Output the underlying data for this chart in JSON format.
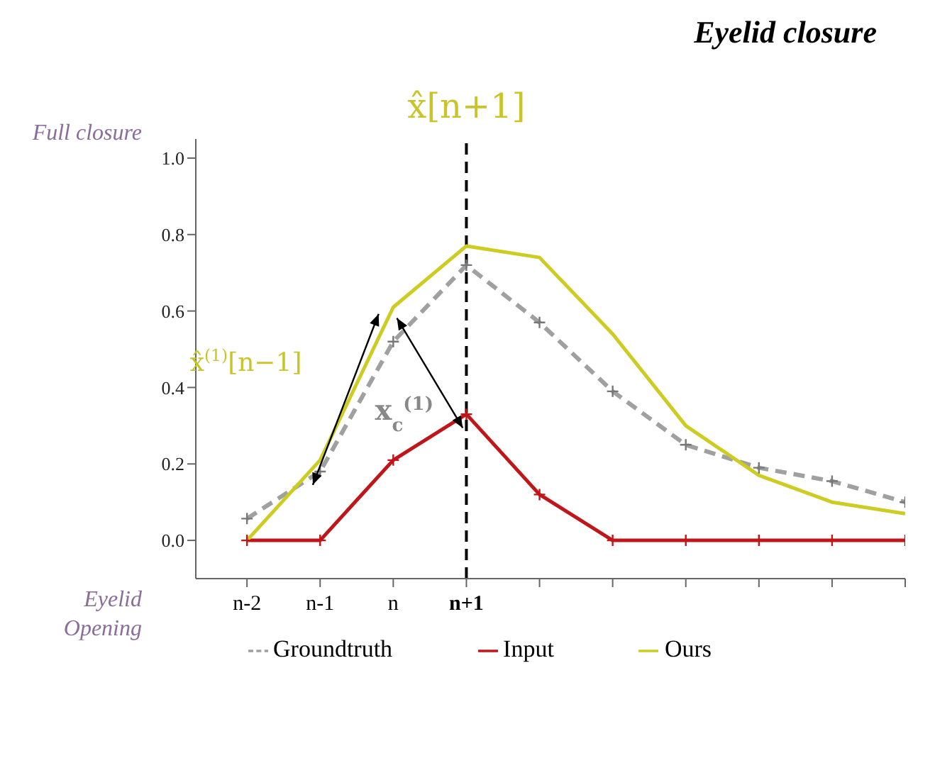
{
  "chart_data": {
    "type": "line",
    "title": "Eyelid closure",
    "categories": [
      "n-2",
      "n-1",
      "n",
      "n+1",
      null,
      null,
      null,
      null,
      null,
      null
    ],
    "series": [
      {
        "name": "Groundtruth",
        "color": "#a0a0a0",
        "line_style": "dashed",
        "marker": "cross",
        "values": [
          0.057,
          0.18,
          0.52,
          0.72,
          0.57,
          0.39,
          0.25,
          0.19,
          0.155,
          0.1
        ]
      },
      {
        "name": "Input",
        "color": "#c0161a",
        "line_style": "solid",
        "marker": "cross",
        "values": [
          0,
          0,
          0.21,
          0.33,
          0.12,
          0,
          0,
          0,
          0,
          0
        ]
      },
      {
        "name": "Ours",
        "color": "#cccc22",
        "line_style": "solid",
        "marker": "none",
        "values": [
          0,
          0.21,
          0.61,
          0.77,
          0.74,
          0.54,
          0.3,
          0.17,
          0.1,
          0.07
        ]
      }
    ],
    "ylim": [
      -0.1,
      1.05
    ],
    "yticks": [
      {
        "value": 0,
        "label": "0.0"
      },
      {
        "value": 0.2,
        "label": "0.2"
      },
      {
        "value": 0.4,
        "label": "0.4"
      },
      {
        "value": 0.6,
        "label": "0.6"
      },
      {
        "value": 0.8,
        "label": "0.8"
      },
      {
        "value": 1,
        "label": "1.0"
      }
    ],
    "ref_lines": [
      {
        "axis": "x",
        "value": "n+1",
        "label": "x̂[n+1]",
        "color": "#000000",
        "line_style": "dashed"
      }
    ],
    "annotations": [
      "Full closure",
      "Eyelid Opening",
      "x̂$^{(1)}$[n−1]",
      "x$_{c}$$^{(1)}$"
    ],
    "legend": "bottom"
  }
}
